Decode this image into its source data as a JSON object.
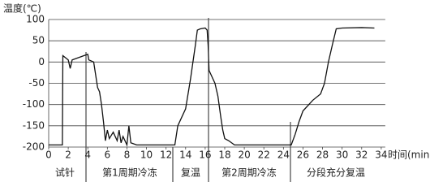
{
  "chart_data": {
    "type": "line",
    "y_label": "温度(℃)",
    "x_label": "时间(min)",
    "xlim": [
      0,
      36
    ],
    "ylim": [
      -200,
      100
    ],
    "xticks": [
      0,
      2,
      4,
      6,
      8,
      10,
      12,
      14,
      16,
      18,
      20,
      22,
      24,
      26,
      28,
      30,
      32,
      34
    ],
    "yticks": [
      100,
      50,
      0,
      -50,
      -100,
      -150,
      -200
    ],
    "grid": true,
    "phases": [
      "试针",
      "第1周期冷冻",
      "复温",
      "第2周期冷冻",
      "分段充分复温"
    ],
    "x": [
      0,
      1.4,
      1.45,
      2.0,
      2.2,
      2.4,
      3.0,
      3.6,
      4.0,
      4.1,
      4.6,
      4.8,
      5.0,
      5.2,
      5.4,
      5.6,
      5.8,
      6.0,
      6.2,
      6.6,
      7.0,
      7.2,
      7.4,
      7.6,
      8.0,
      8.2,
      8.4,
      9.0,
      12.9,
      13.2,
      14.0,
      14.5,
      15.0,
      15.2,
      15.5,
      16.0,
      16.2,
      16.3,
      16.4,
      16.6,
      17.0,
      17.3,
      17.6,
      17.8,
      18.0,
      18.4,
      19.0,
      24.8,
      25.2,
      25.6,
      26.0,
      27.0,
      27.8,
      28.2,
      28.6,
      29.0,
      29.4,
      30.0,
      32.0,
      33.3
    ],
    "series": [
      {
        "color": "#111111",
        "values": [
          -195,
          -195,
          15,
          5,
          -15,
          5,
          10,
          15,
          18,
          5,
          0,
          -30,
          -60,
          -70,
          -100,
          -140,
          -185,
          -160,
          -180,
          -165,
          -185,
          -160,
          -190,
          -175,
          -195,
          -150,
          -190,
          -195,
          -195,
          -150,
          -110,
          -40,
          40,
          75,
          78,
          80,
          75,
          40,
          -20,
          -30,
          -50,
          -80,
          -130,
          -160,
          -180,
          -185,
          -195,
          -195,
          -170,
          -140,
          -115,
          -90,
          -75,
          -50,
          0,
          40,
          78,
          80,
          81,
          80
        ]
      }
    ]
  }
}
